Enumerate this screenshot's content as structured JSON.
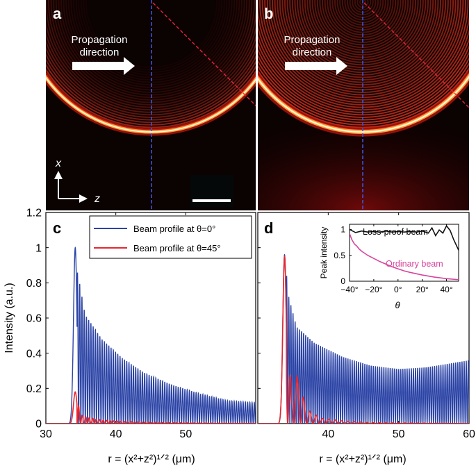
{
  "figure": {
    "panel_labels": [
      "a",
      "b",
      "c",
      "d"
    ],
    "propagation_label": [
      "Propagation",
      "direction"
    ],
    "x_axis_symbol": "x",
    "z_axis_symbol": "z"
  },
  "colors": {
    "blue": "#2c44a6",
    "red": "#e8262f",
    "black": "#111111",
    "magenta": "#d6459c",
    "guide_blue": "#3f53d6",
    "guide_red": "#e8263a"
  },
  "chart_data": [
    {
      "id": "c",
      "type": "line",
      "xlim": [
        30,
        60
      ],
      "ylim": [
        0,
        1.2
      ],
      "xticks": [
        "30",
        "40",
        "50"
      ],
      "yticks": [
        "0",
        "0.2",
        "0.4",
        "0.6",
        "0.8",
        "1",
        "1.2"
      ],
      "ylabel": "Intensity (a.u.)",
      "xlabel": "r = (x²+z²)¹ᐟ² (μm)",
      "legend_position": "top-right",
      "series": [
        {
          "name": "Beam profile at θ=0°",
          "color": "#2c44a6",
          "peak_x": 34.2,
          "peak_y": 1.0,
          "envelope_x": [
            33.3,
            34.0,
            34.6,
            35.6,
            38,
            41,
            44,
            48,
            52,
            56,
            59.6
          ],
          "envelope_y": [
            0.05,
            0.92,
            0.85,
            0.62,
            0.48,
            0.37,
            0.29,
            0.22,
            0.17,
            0.13,
            0.12
          ],
          "fringe_period": 0.32
        },
        {
          "name": "Beam profile at θ=45°",
          "color": "#e8262f",
          "peak_x": 34.2,
          "peak_y": 0.18,
          "envelope_x": [
            33.5,
            34.2,
            35.0,
            36,
            38,
            41,
            45,
            50,
            55,
            59.6
          ],
          "envelope_y": [
            0.0,
            0.18,
            0.05,
            0.035,
            0.02,
            0.012,
            0.007,
            0.004,
            0.002,
            0.001
          ],
          "fringe_period": 0.5
        }
      ]
    },
    {
      "id": "d",
      "type": "line",
      "xlim": [
        30,
        60
      ],
      "ylim": [
        0,
        1.2
      ],
      "xticks": [
        "40",
        "50",
        "60"
      ],
      "xlabel": "r = (x²+z²)¹ᐟ² (μm)",
      "series": [
        {
          "color": "#2c44a6",
          "peak_x": 33.8,
          "peak_y": 0.96,
          "envelope_x": [
            33.0,
            33.8,
            34.4,
            35.5,
            38,
            42,
            46,
            50,
            54,
            57,
            60
          ],
          "envelope_y": [
            0.05,
            0.96,
            0.72,
            0.55,
            0.46,
            0.38,
            0.33,
            0.31,
            0.32,
            0.34,
            0.36
          ],
          "fringe_period": 0.3
        },
        {
          "color": "#e8262f",
          "peak_x": 33.8,
          "peak_y": 0.95,
          "envelope_x": [
            33.0,
            33.8,
            34.8,
            35.6,
            37,
            39,
            42,
            46,
            60
          ],
          "envelope_y": [
            0.0,
            0.95,
            0.15,
            0.27,
            0.08,
            0.03,
            0.015,
            0.005,
            0.0
          ],
          "fringe_period": 0.9
        }
      ],
      "inset": {
        "type": "line",
        "xlim": [
          -40,
          50
        ],
        "ylim": [
          0,
          1.1
        ],
        "xticks": [
          "−40°",
          "−20°",
          "0°",
          "20°",
          "40°"
        ],
        "yticks": [
          "0",
          "0.5",
          "1"
        ],
        "ylabel": "Peak intensity",
        "xlabel": "θ",
        "series": [
          {
            "name": "Loss-proof beam",
            "color": "#111111",
            "x": [
              -40,
              -35,
              -30,
              -25,
              -20,
              -15,
              -10,
              -5,
              0,
              5,
              10,
              15,
              20,
              25,
              28,
              31,
              34,
              37,
              40,
              43,
              46,
              50
            ],
            "y": [
              1.0,
              0.94,
              0.97,
              0.95,
              0.96,
              0.95,
              0.97,
              0.95,
              0.96,
              0.95,
              0.96,
              0.95,
              0.97,
              0.93,
              1.03,
              0.88,
              0.99,
              0.93,
              1.07,
              0.98,
              0.8,
              0.6
            ]
          },
          {
            "name": "Ordinary beam",
            "color": "#d6459c",
            "x": [
              -40,
              -38,
              -36,
              -34,
              -32,
              -30,
              -25,
              -20,
              -15,
              -10,
              -5,
              0,
              5,
              10,
              20,
              30,
              40,
              50
            ],
            "y": [
              0.92,
              0.8,
              0.72,
              0.68,
              0.62,
              0.58,
              0.5,
              0.44,
              0.38,
              0.33,
              0.28,
              0.24,
              0.2,
              0.17,
              0.12,
              0.08,
              0.05,
              0.03
            ]
          }
        ]
      }
    }
  ]
}
